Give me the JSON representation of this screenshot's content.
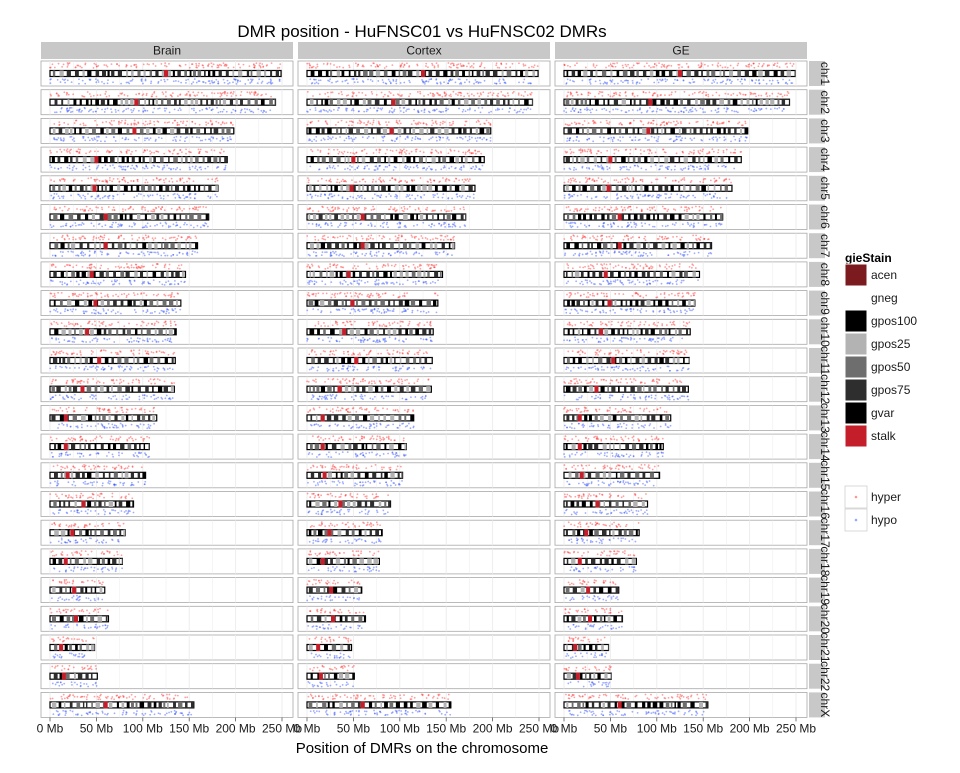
{
  "chart_data": {
    "type": "faceted-ideogram",
    "title": "DMR position - HuFNSC01 vs HuFNSC02 DMRs",
    "xlabel": "Position of DMRs on the chromosome",
    "ylabel": "",
    "xlim": [
      0,
      250
    ],
    "x_unit": "Mb",
    "x_ticks": [
      0,
      50,
      100,
      150,
      200,
      250
    ],
    "x_tick_labels": [
      "0 Mb",
      "50 Mb",
      "100 Mb",
      "150 Mb",
      "200 Mb",
      "250 Mb"
    ],
    "grid": true,
    "column_facets": [
      "Brain",
      "Cortex",
      "GE"
    ],
    "row_facets": [
      {
        "label": "chr1",
        "length": 249,
        "centromere": 125
      },
      {
        "label": "chr2",
        "length": 243,
        "centromere": 93
      },
      {
        "label": "chr3",
        "length": 198,
        "centromere": 91
      },
      {
        "label": "chr4",
        "length": 191,
        "centromere": 50
      },
      {
        "label": "chr5",
        "length": 181,
        "centromere": 48
      },
      {
        "label": "chr6",
        "length": 171,
        "centromere": 60
      },
      {
        "label": "chr7",
        "length": 159,
        "centromere": 60
      },
      {
        "label": "chr8",
        "length": 146,
        "centromere": 45
      },
      {
        "label": "chr9",
        "length": 141,
        "centromere": 49
      },
      {
        "label": "chr10",
        "length": 136,
        "centromere": 40
      },
      {
        "label": "chr11",
        "length": 135,
        "centromere": 53
      },
      {
        "label": "chr12",
        "length": 134,
        "centromere": 35
      },
      {
        "label": "chr13",
        "length": 115,
        "centromere": 17
      },
      {
        "label": "chr14",
        "length": 107,
        "centromere": 17
      },
      {
        "label": "chr15",
        "length": 103,
        "centromere": 19
      },
      {
        "label": "chr16",
        "length": 90,
        "centromere": 36
      },
      {
        "label": "chr17",
        "length": 81,
        "centromere": 24
      },
      {
        "label": "chr18",
        "length": 78,
        "centromere": 17
      },
      {
        "label": "chr19",
        "length": 59,
        "centromere": 26
      },
      {
        "label": "chr20",
        "length": 63,
        "centromere": 28
      },
      {
        "label": "chr21",
        "length": 48,
        "centromere": 12
      },
      {
        "label": "chr22",
        "length": 51,
        "centromere": 15
      },
      {
        "label": "chrX",
        "length": 155,
        "centromere": 60
      }
    ],
    "legend": {
      "title": "gieStain",
      "position": "right",
      "fill_items": [
        {
          "label": "acen",
          "color": "#7b1a1f"
        },
        {
          "label": "gneg",
          "color": "#ffffff"
        },
        {
          "label": "gpos100",
          "color": "#000000"
        },
        {
          "label": "gpos25",
          "color": "#b3b3b3"
        },
        {
          "label": "gpos50",
          "color": "#6e6e6e"
        },
        {
          "label": "gpos75",
          "color": "#2e2e2e"
        },
        {
          "label": "gvar",
          "color": "#000000"
        },
        {
          "label": "stalk",
          "color": "#c41e2a"
        }
      ],
      "point_items": [
        {
          "label": "hyper",
          "color": "#ff3030"
        },
        {
          "label": "hypo",
          "color": "#3050ff"
        }
      ]
    }
  }
}
